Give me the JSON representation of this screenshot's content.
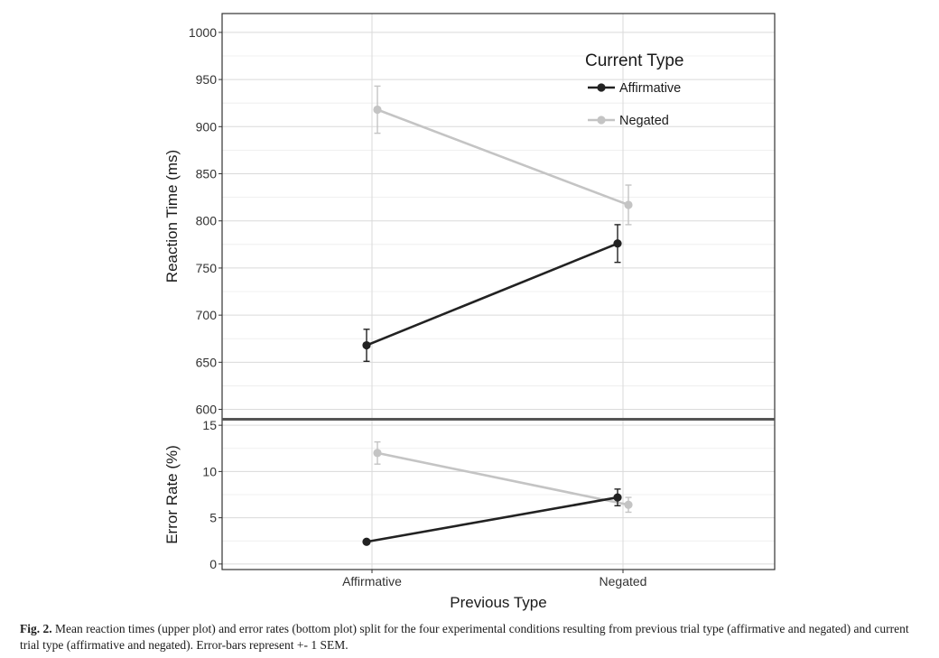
{
  "chart_data": [
    {
      "type": "line",
      "panel": "upper",
      "ylabel": "Reaction Time (ms)",
      "ylim": [
        590,
        1020
      ],
      "yticks": [
        600,
        650,
        700,
        750,
        800,
        850,
        900,
        950,
        1000
      ],
      "categories": [
        "Affirmative",
        "Negated"
      ],
      "grid": true,
      "legend": {
        "title": "Current Type",
        "placement": "top-right",
        "entries": [
          "Affirmative",
          "Negated"
        ]
      },
      "series": [
        {
          "name": "Affirmative",
          "color": "#222222",
          "values": [
            668,
            776
          ],
          "err": [
            17,
            20
          ]
        },
        {
          "name": "Negated",
          "color": "#c4c4c4",
          "values": [
            918,
            817
          ],
          "err": [
            25,
            21
          ]
        }
      ]
    },
    {
      "type": "line",
      "panel": "lower",
      "ylabel": "Error Rate (%)",
      "ylim": [
        -0.6,
        15.6
      ],
      "yticks": [
        0,
        5,
        10,
        15
      ],
      "categories": [
        "Affirmative",
        "Negated"
      ],
      "xlabel": "Previous Type",
      "grid": true,
      "series": [
        {
          "name": "Affirmative",
          "color": "#222222",
          "values": [
            2.4,
            7.2
          ],
          "err": [
            0.2,
            0.9
          ]
        },
        {
          "name": "Negated",
          "color": "#c4c4c4",
          "values": [
            12.0,
            6.4
          ],
          "err": [
            1.2,
            0.8
          ]
        }
      ]
    }
  ],
  "caption": {
    "label": "Fig. 2.",
    "text": "Mean reaction times (upper plot) and error rates (bottom plot) split for the four experimental conditions resulting from previous trial type (affirmative and negated) and current trial type (affirmative and negated). Error-bars represent +- 1 SEM."
  }
}
